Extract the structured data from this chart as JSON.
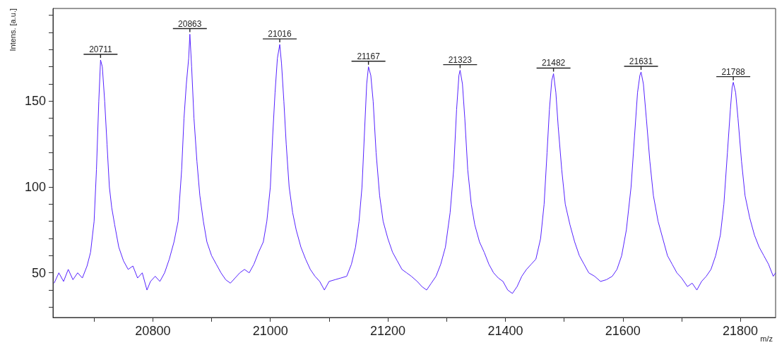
{
  "chart_data": {
    "type": "line",
    "xlabel": "m/z",
    "ylabel": "Intens. [a.u.]",
    "xlim": [
      20630,
      21860
    ],
    "xticks": [
      {
        "value": 20700,
        "label": null
      },
      20800,
      {
        "value": 20900,
        "label": null
      },
      21000,
      {
        "value": 21100,
        "label": null
      },
      21200,
      {
        "value": 21300,
        "label": null
      },
      21400,
      {
        "value": 21500,
        "label": null
      },
      21600,
      {
        "value": 21700,
        "label": null
      },
      21800
    ],
    "ylim": [
      24,
      204
    ],
    "yticks": [
      {
        "value": 30,
        "label": null
      },
      {
        "value": 40,
        "label": null
      },
      50,
      {
        "value": 60,
        "label": null
      },
      {
        "value": 70,
        "label": null
      },
      {
        "value": 80,
        "label": null
      },
      {
        "value": 90,
        "label": null
      },
      100,
      {
        "value": 110,
        "label": null
      },
      {
        "value": 120,
        "label": null
      },
      {
        "value": 130,
        "label": null
      },
      {
        "value": 140,
        "label": null
      },
      150,
      {
        "value": 160,
        "label": null
      },
      {
        "value": 170,
        "label": null
      },
      {
        "value": 180,
        "label": null
      },
      {
        "value": 190,
        "label": null
      },
      {
        "value": 200,
        "label": null
      }
    ],
    "grid": false,
    "marker": "none",
    "line_style": "solid",
    "annotations": [
      {
        "text": "20711",
        "x": 20711,
        "y": 174
      },
      {
        "text": "20863",
        "x": 20863,
        "y": 189
      },
      {
        "text": "21016",
        "x": 21016,
        "y": 183
      },
      {
        "text": "21167",
        "x": 21167,
        "y": 170
      },
      {
        "text": "21323",
        "x": 21323,
        "y": 168
      },
      {
        "text": "21482",
        "x": 21482,
        "y": 166
      },
      {
        "text": "21631",
        "x": 21631,
        "y": 167
      },
      {
        "text": "21788",
        "x": 21788,
        "y": 161
      }
    ],
    "series": [
      {
        "color": "#5522ff",
        "x": [
          20632,
          20640,
          20648,
          20656,
          20664,
          20672,
          20680,
          20688,
          20694,
          20700,
          20704,
          20708,
          20711,
          20714,
          20718,
          20722,
          20726,
          20730,
          20735,
          20742,
          20750,
          20758,
          20766,
          20774,
          20782,
          20790,
          20796,
          20804,
          20812,
          20820,
          20828,
          20836,
          20843,
          20849,
          20853,
          20857,
          20861,
          20863,
          20866,
          20870,
          20875,
          20880,
          20886,
          20892,
          20900,
          20908,
          20916,
          20924,
          20932,
          20940,
          20948,
          20956,
          20964,
          20972,
          20980,
          20988,
          20994,
          21000,
          21004,
          21008,
          21012,
          21016,
          21019,
          21023,
          21027,
          21032,
          21038,
          21044,
          21052,
          21060,
          21068,
          21076,
          21084,
          21092,
          21100,
          21110,
          21120,
          21130,
          21138,
          21145,
          21151,
          21156,
          21160,
          21164,
          21167,
          21171,
          21175,
          21180,
          21186,
          21192,
          21200,
          21208,
          21216,
          21224,
          21232,
          21240,
          21250,
          21258,
          21266,
          21274,
          21282,
          21290,
          21298,
          21306,
          21312,
          21317,
          21321,
          21323,
          21327,
          21331,
          21336,
          21342,
          21348,
          21356,
          21364,
          21372,
          21380,
          21388,
          21396,
          21404,
          21412,
          21420,
          21428,
          21436,
          21444,
          21452,
          21460,
          21466,
          21471,
          21475,
          21479,
          21482,
          21486,
          21490,
          21496,
          21502,
          21510,
          21518,
          21526,
          21534,
          21542,
          21552,
          21562,
          21572,
          21582,
          21590,
          21598,
          21606,
          21614,
          21620,
          21625,
          21629,
          21631,
          21635,
          21640,
          21646,
          21652,
          21660,
          21668,
          21676,
          21684,
          21692,
          21700,
          21710,
          21718,
          21726,
          21734,
          21742,
          21750,
          21758,
          21766,
          21772,
          21778,
          21783,
          21786,
          21788,
          21792,
          21796,
          21802,
          21808,
          21816,
          21824,
          21832,
          21840,
          21848,
          21856,
          21860
        ],
        "values": [
          44,
          50,
          45,
          52,
          46,
          50,
          47,
          54,
          62,
          80,
          110,
          150,
          174,
          170,
          150,
          125,
          100,
          88,
          78,
          65,
          57,
          52,
          54,
          47,
          50,
          40,
          45,
          48,
          45,
          50,
          58,
          68,
          80,
          110,
          140,
          160,
          175,
          189,
          170,
          140,
          115,
          95,
          80,
          68,
          60,
          55,
          50,
          46,
          44,
          47,
          50,
          52,
          50,
          55,
          62,
          68,
          80,
          100,
          130,
          155,
          175,
          183,
          172,
          150,
          125,
          100,
          85,
          75,
          65,
          58,
          52,
          48,
          45,
          40,
          45,
          46,
          47,
          48,
          55,
          65,
          80,
          100,
          130,
          160,
          170,
          165,
          150,
          120,
          95,
          80,
          70,
          62,
          57,
          52,
          50,
          48,
          45,
          42,
          40,
          44,
          48,
          55,
          65,
          85,
          110,
          145,
          165,
          168,
          160,
          140,
          110,
          90,
          78,
          68,
          62,
          55,
          50,
          47,
          45,
          40,
          38,
          42,
          48,
          52,
          55,
          58,
          70,
          90,
          120,
          145,
          162,
          166,
          155,
          135,
          110,
          90,
          78,
          68,
          60,
          55,
          50,
          48,
          45,
          46,
          48,
          52,
          60,
          75,
          100,
          130,
          155,
          165,
          167,
          160,
          140,
          115,
          95,
          80,
          70,
          60,
          55,
          50,
          47,
          42,
          44,
          40,
          45,
          48,
          52,
          60,
          72,
          90,
          120,
          145,
          158,
          161,
          155,
          140,
          115,
          95,
          82,
          72,
          65,
          60,
          55,
          48,
          50
        ]
      }
    ]
  }
}
